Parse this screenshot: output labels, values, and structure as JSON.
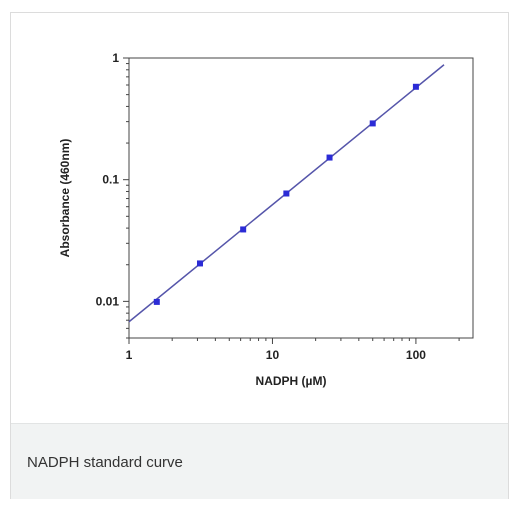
{
  "caption": "NADPH standard curve",
  "chart_data": {
    "type": "scatter",
    "title": "",
    "xlabel": "NADPH (µM)",
    "ylabel": "Absorbance (460nm)",
    "x_scale": "log",
    "y_scale": "log",
    "xlim": [
      1,
      250
    ],
    "ylim": [
      0.005,
      1
    ],
    "x_ticks": [
      1,
      10,
      100
    ],
    "x_tick_labels": [
      "1",
      "10",
      "100"
    ],
    "y_ticks": [
      0.01,
      0.1,
      1
    ],
    "y_tick_labels": [
      "0.01",
      "0.1",
      "1"
    ],
    "grid": false,
    "series": [
      {
        "x": [
          1.5625,
          3.125,
          6.25,
          12.5,
          25,
          50,
          100
        ],
        "y": [
          0.0099,
          0.0205,
          0.039,
          0.077,
          0.152,
          0.29,
          0.58
        ]
      }
    ],
    "fit_line": {
      "x": [
        1,
        157
      ],
      "y": [
        0.0068,
        0.88
      ]
    },
    "colors": {
      "points": "#2b2bd6",
      "line": "#5555aa",
      "axes": "#444444"
    }
  }
}
